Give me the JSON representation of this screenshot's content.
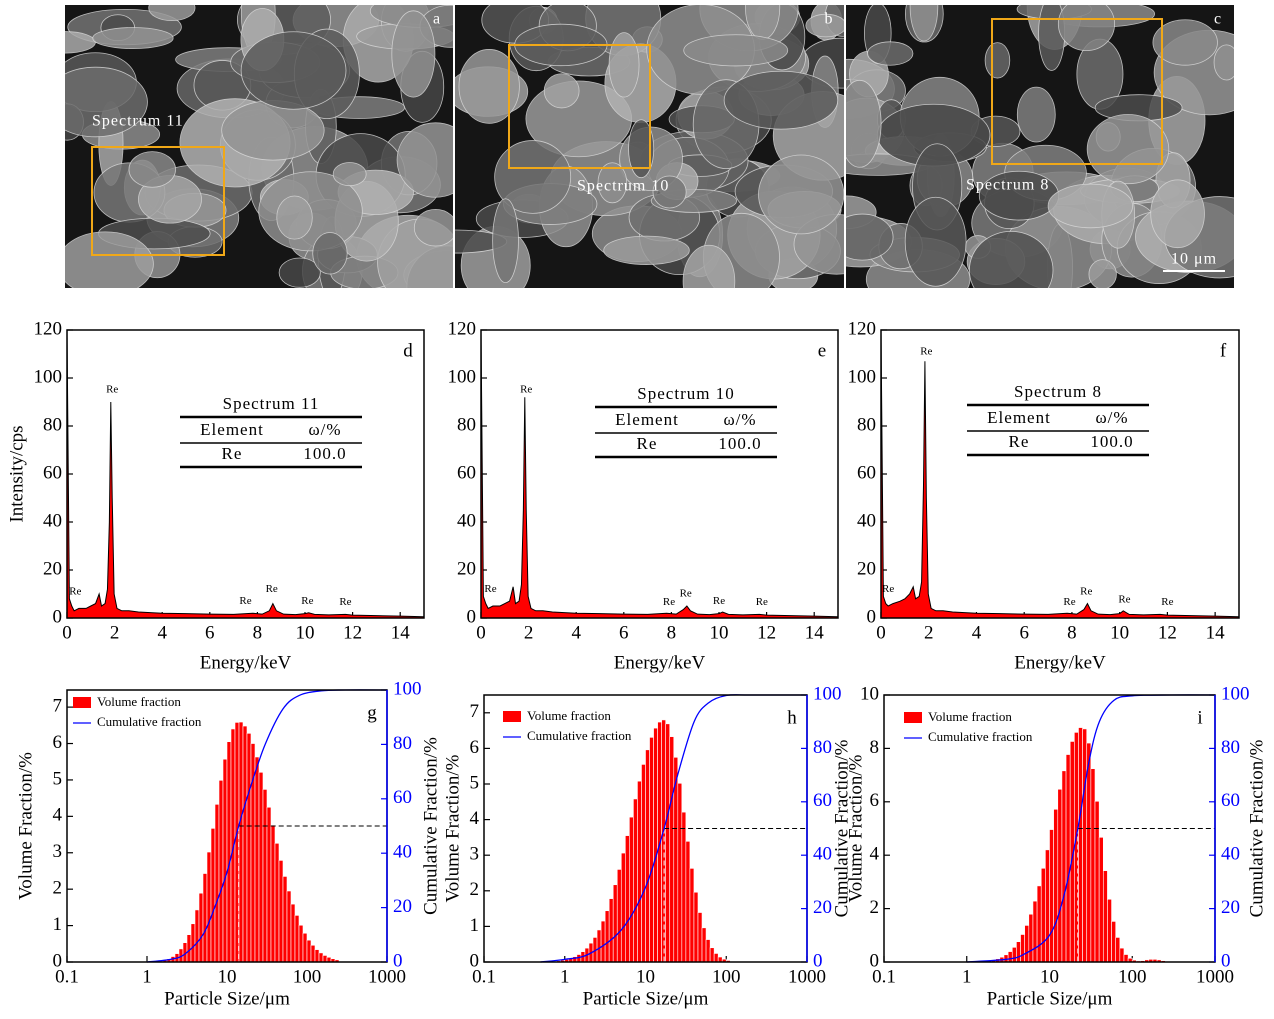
{
  "images": [
    {
      "label": "a",
      "spectrum": "Spectrum 11"
    },
    {
      "label": "b",
      "spectrum": "Spectrum 10"
    },
    {
      "label": "c",
      "spectrum": "Spectrum 8",
      "scale_bar": "10 μm"
    }
  ],
  "chart_data": [
    {
      "type": "area",
      "panel": "d",
      "x_label": "Energy/keV",
      "y_label": "Intensity/cps",
      "color": "#ff0000",
      "xlim": [
        0,
        15
      ],
      "ylim": [
        0,
        120
      ],
      "xticks": [
        0,
        2,
        4,
        6,
        8,
        10,
        12,
        14
      ],
      "yticks": [
        0,
        20,
        40,
        60,
        80,
        100,
        120
      ],
      "x": [
        0,
        0.1,
        0.2,
        0.3,
        0.5,
        0.8,
        1.0,
        1.2,
        1.35,
        1.45,
        1.6,
        1.7,
        1.78,
        1.84,
        1.9,
        1.98,
        2.1,
        2.3,
        2.6,
        3,
        4,
        5,
        6,
        7,
        7.8,
        8.2,
        8.5,
        8.65,
        8.8,
        9.1,
        9.6,
        10.0,
        10.15,
        10.4,
        11,
        11.7,
        12,
        13,
        14,
        15
      ],
      "values": [
        120,
        8,
        5,
        3,
        4,
        4,
        5,
        6,
        10,
        5,
        6,
        12,
        40,
        90,
        50,
        10,
        4,
        3,
        3,
        2.5,
        2,
        1.8,
        1.6,
        1.5,
        2,
        1.6,
        3,
        6,
        3,
        1.6,
        1.4,
        1.8,
        2.2,
        1.5,
        1.3,
        1.5,
        1.2,
        1,
        0.8,
        0.5
      ],
      "annotations": [
        {
          "text": "Re",
          "x": 0.35,
          "y": 8
        },
        {
          "text": "Re",
          "x": 1.9,
          "y": 92
        },
        {
          "text": "Re",
          "x": 7.5,
          "y": 4
        },
        {
          "text": "Re",
          "x": 8.6,
          "y": 9
        },
        {
          "text": "Re",
          "x": 10.1,
          "y": 4
        },
        {
          "text": "Re",
          "x": 11.7,
          "y": 3.5
        }
      ],
      "table": {
        "title": "Spectrum 11",
        "header": [
          "Element",
          "ω/%"
        ],
        "rows": [
          [
            "Re",
            "100.0"
          ]
        ]
      }
    },
    {
      "type": "area",
      "panel": "e",
      "x_label": "Energy/keV",
      "color": "#ff0000",
      "xlim": [
        0,
        15
      ],
      "ylim": [
        0,
        120
      ],
      "xticks": [
        0,
        2,
        4,
        6,
        8,
        10,
        12,
        14
      ],
      "yticks": [
        0,
        20,
        40,
        60,
        80,
        100,
        120
      ],
      "x": [
        0,
        0.1,
        0.2,
        0.3,
        0.5,
        0.8,
        1.0,
        1.2,
        1.35,
        1.45,
        1.6,
        1.7,
        1.78,
        1.84,
        1.9,
        1.98,
        2.1,
        2.3,
        2.6,
        3,
        4,
        5,
        6,
        7,
        7.8,
        8.2,
        8.5,
        8.65,
        8.8,
        9.1,
        9.6,
        10.0,
        10.15,
        10.4,
        11,
        11.7,
        12,
        13,
        14,
        15
      ],
      "values": [
        120,
        9,
        6,
        4,
        5,
        5,
        6,
        7,
        13,
        6,
        7,
        14,
        45,
        92,
        45,
        9,
        4,
        3,
        3,
        2.5,
        2,
        1.8,
        1.6,
        1.5,
        2,
        1.6,
        3.5,
        5,
        3,
        1.6,
        1.4,
        1.8,
        2.5,
        1.5,
        1.3,
        1.5,
        1.2,
        1,
        0.8,
        0.5
      ],
      "annotations": [
        {
          "text": "Re",
          "x": 0.4,
          "y": 9
        },
        {
          "text": "Re",
          "x": 1.9,
          "y": 92
        },
        {
          "text": "Re",
          "x": 7.9,
          "y": 3.5
        },
        {
          "text": "Re",
          "x": 8.6,
          "y": 7
        },
        {
          "text": "Re",
          "x": 10.0,
          "y": 4
        },
        {
          "text": "Re",
          "x": 11.8,
          "y": 3.5
        }
      ],
      "table": {
        "title": "Spectrum 10",
        "header": [
          "Element",
          "ω/%"
        ],
        "rows": [
          [
            "Re",
            "100.0"
          ]
        ]
      }
    },
    {
      "type": "area",
      "panel": "f",
      "x_label": "Energy/keV",
      "color": "#ff0000",
      "xlim": [
        0,
        15
      ],
      "ylim": [
        0,
        120
      ],
      "xticks": [
        0,
        2,
        4,
        6,
        8,
        10,
        12,
        14
      ],
      "yticks": [
        0,
        20,
        40,
        60,
        80,
        100,
        120
      ],
      "x": [
        0,
        0.1,
        0.2,
        0.3,
        0.5,
        0.8,
        1.0,
        1.2,
        1.35,
        1.45,
        1.6,
        1.7,
        1.78,
        1.84,
        1.9,
        1.98,
        2.1,
        2.3,
        2.6,
        3,
        4,
        5,
        6,
        7,
        7.8,
        8.2,
        8.5,
        8.65,
        8.8,
        9.1,
        9.6,
        10.0,
        10.15,
        10.4,
        11,
        11.7,
        12,
        13,
        14,
        15
      ],
      "values": [
        120,
        9,
        6,
        5,
        6,
        7,
        8,
        10,
        13,
        8,
        9,
        15,
        55,
        107,
        50,
        10,
        4,
        3,
        3,
        2.5,
        2,
        1.8,
        1.6,
        1.5,
        2,
        1.6,
        3.5,
        6,
        3,
        1.6,
        1.4,
        1.8,
        3,
        1.5,
        1.3,
        1.5,
        1.2,
        1,
        0.8,
        0.5
      ],
      "annotations": [
        {
          "text": "Re",
          "x": 0.3,
          "y": 9
        },
        {
          "text": "Re",
          "x": 1.9,
          "y": 108
        },
        {
          "text": "Re",
          "x": 7.9,
          "y": 3.5
        },
        {
          "text": "Re",
          "x": 8.6,
          "y": 8
        },
        {
          "text": "Re",
          "x": 10.2,
          "y": 4.5
        },
        {
          "text": "Re",
          "x": 12.0,
          "y": 3.5
        }
      ],
      "table": {
        "title": "Spectrum 8",
        "header": [
          "Element",
          "ω/%"
        ],
        "rows": [
          [
            "Re",
            "100.0"
          ]
        ]
      }
    },
    {
      "type": "histogram",
      "panel": "g",
      "x_label": "Particle Size/μm",
      "y_label": "Volume Fraction/%",
      "y2_label": "Cumulative Fraction/%",
      "log_x": true,
      "xlim": [
        0.1,
        1000
      ],
      "xticks": [
        0.1,
        1,
        10,
        100,
        1000
      ],
      "ylim": [
        0,
        7.47
      ],
      "yticks": [
        0,
        1,
        2,
        3,
        4,
        5,
        6,
        7
      ],
      "y2lim": [
        0,
        100
      ],
      "y2ticks": [
        0,
        20,
        40,
        60,
        80,
        100
      ],
      "bins": [
        1,
        1.122,
        1.259,
        1.413,
        1.585,
        1.778,
        1.995,
        2.239,
        2.512,
        2.818,
        3.162,
        3.548,
        3.981,
        4.467,
        5.012,
        5.623,
        6.31,
        7.079,
        7.943,
        8.913,
        10,
        11.22,
        12.59,
        14.13,
        15.85,
        17.78,
        19.95,
        22.39,
        25.12,
        28.18,
        31.62,
        35.48,
        39.81,
        44.67,
        50.12,
        56.23,
        63.1,
        70.79,
        79.43,
        89.13,
        100,
        112.2,
        125.9,
        141.3,
        158.5,
        177.8,
        199.5,
        223.9,
        251.2
      ],
      "series": [
        {
          "name": "Volume fraction",
          "color": "#ff0000",
          "values": [
            0.01,
            0.01,
            0.02,
            0.03,
            0.06,
            0.09,
            0.15,
            0.23,
            0.36,
            0.53,
            0.75,
            1.05,
            1.43,
            1.89,
            2.43,
            3.02,
            3.67,
            4.33,
            4.99,
            5.57,
            6.05,
            6.4,
            6.58,
            6.59,
            6.48,
            6.28,
            6.0,
            5.63,
            5.21,
            4.74,
            4.25,
            3.76,
            3.26,
            2.79,
            2.35,
            1.95,
            1.59,
            1.28,
            1.01,
            0.79,
            0.6,
            0.46,
            0.34,
            0.25,
            0.18,
            0.13,
            0.09,
            0.06
          ]
        },
        {
          "name": "Cumulative fraction",
          "color": "#0000ff",
          "axis": "y2",
          "x": [
            1,
            2,
            3,
            5,
            7,
            10,
            14,
            20,
            30,
            50,
            80,
            150,
            300,
            1000
          ],
          "values": [
            0,
            1,
            3,
            10,
            20,
            33,
            50,
            65,
            80,
            93,
            98,
            99.7,
            100,
            100
          ]
        }
      ],
      "reference": {
        "x": 14,
        "y2": 50
      }
    },
    {
      "type": "histogram",
      "panel": "h",
      "x_label": "Particle Size/μm",
      "y_label": "Volume Fraction/%",
      "y2_label": "Cumulative Fraction/%",
      "log_x": true,
      "xlim": [
        0.1,
        1000
      ],
      "xticks": [
        0.1,
        1,
        10,
        100,
        1000
      ],
      "ylim": [
        0,
        7.5
      ],
      "yticks": [
        0,
        1,
        2,
        3,
        4,
        5,
        6,
        7
      ],
      "y2lim": [
        0,
        100
      ],
      "y2ticks": [
        0,
        20,
        40,
        60,
        80,
        100
      ],
      "bins": [
        0.501,
        0.562,
        0.631,
        0.708,
        0.794,
        0.891,
        1,
        1.122,
        1.259,
        1.413,
        1.585,
        1.778,
        1.995,
        2.239,
        2.512,
        2.818,
        3.162,
        3.548,
        3.981,
        4.467,
        5.012,
        5.623,
        6.31,
        7.079,
        7.943,
        8.913,
        10,
        11.22,
        12.59,
        14.13,
        15.85,
        17.78,
        19.95,
        22.39,
        25.12,
        28.18,
        31.62,
        35.48,
        39.81,
        44.67,
        50.12,
        56.23,
        63.1,
        70.79,
        79.43,
        89.13,
        100,
        112.2,
        125.9
      ],
      "series": [
        {
          "name": "Volume fraction",
          "color": "#ff0000",
          "values": [
            0.006,
            0.009,
            0.014,
            0.022,
            0.033,
            0.05,
            0.073,
            0.105,
            0.15,
            0.21,
            0.29,
            0.39,
            0.53,
            0.69,
            0.9,
            1.15,
            1.44,
            1.78,
            2.17,
            2.6,
            3.06,
            3.55,
            4.07,
            4.58,
            5.08,
            5.55,
            5.96,
            6.31,
            6.57,
            6.74,
            6.8,
            6.69,
            6.33,
            5.75,
            5.02,
            4.21,
            3.39,
            2.63,
            1.96,
            1.39,
            0.96,
            0.63,
            0.4,
            0.24,
            0.14,
            0.08,
            0.043,
            0.022
          ]
        },
        {
          "name": "Cumulative fraction",
          "color": "#0000ff",
          "axis": "y2",
          "x": [
            0.5,
            1,
            2,
            5,
            10,
            17,
            25,
            40,
            60,
            100,
            200,
            1000
          ],
          "values": [
            0,
            1,
            3,
            12,
            28,
            50,
            70,
            90,
            97,
            99.8,
            100,
            100
          ]
        }
      ],
      "reference": {
        "x": 17,
        "y2": 50
      }
    },
    {
      "type": "histogram",
      "panel": "i",
      "x_label": "Particle Size/μm",
      "y_label": "Volume Fraction/%",
      "y2_label": "Cumulative Fraction/%",
      "log_x": true,
      "xlim": [
        0.1,
        1000
      ],
      "xticks": [
        0.1,
        1,
        10,
        100,
        1000
      ],
      "ylim": [
        0,
        10
      ],
      "yticks": [
        0,
        2,
        4,
        6,
        8,
        10
      ],
      "y2lim": [
        0,
        100
      ],
      "y2ticks": [
        0,
        20,
        40,
        60,
        80,
        100
      ],
      "bins": [
        1,
        1.122,
        1.259,
        1.413,
        1.585,
        1.778,
        1.995,
        2.239,
        2.512,
        2.818,
        3.162,
        3.548,
        3.981,
        4.467,
        5.012,
        5.623,
        6.31,
        7.079,
        7.943,
        8.913,
        10,
        11.22,
        12.59,
        14.13,
        15.85,
        17.78,
        19.95,
        22.39,
        25.12,
        28.18,
        31.62,
        35.48,
        39.81,
        44.67,
        50.12,
        56.23,
        63.1,
        70.79,
        79.43,
        89.13,
        100,
        112.2,
        125.9,
        141.3,
        158.5,
        177.8,
        199.5,
        223.9,
        251.2,
        281.8,
        316.2
      ],
      "series": [
        {
          "name": "Volume fraction",
          "color": "#ff0000",
          "values": [
            0.005,
            0.01,
            0.01,
            0.02,
            0.03,
            0.05,
            0.08,
            0.12,
            0.18,
            0.27,
            0.39,
            0.55,
            0.76,
            1.03,
            1.37,
            1.79,
            2.28,
            2.85,
            3.51,
            4.2,
            4.96,
            5.72,
            6.47,
            7.16,
            7.77,
            8.26,
            8.6,
            8.78,
            8.73,
            8.2,
            7.24,
            6.02,
            4.67,
            3.42,
            2.35,
            1.52,
            0.92,
            0.52,
            0.28,
            0.14,
            0.07,
            0.04,
            0.05,
            0.08,
            0.1,
            0.1,
            0.08,
            0.05,
            0.03,
            0.01
          ]
        },
        {
          "name": "Cumulative fraction",
          "color": "#0000ff",
          "axis": "y2",
          "x": [
            1,
            3,
            5,
            10,
            15,
            22,
            30,
            40,
            60,
            100,
            300,
            1000
          ],
          "values": [
            0,
            1,
            3,
            10,
            25,
            50,
            75,
            90,
            98,
            99.7,
            100,
            100
          ]
        }
      ],
      "reference": {
        "x": 22,
        "y2": 50
      }
    }
  ]
}
